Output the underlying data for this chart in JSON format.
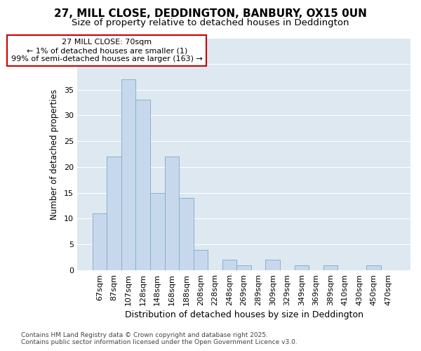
{
  "title_line1": "27, MILL CLOSE, DEDDINGTON, BANBURY, OX15 0UN",
  "title_line2": "Size of property relative to detached houses in Deddington",
  "xlabel": "Distribution of detached houses by size in Deddington",
  "ylabel": "Number of detached properties",
  "bar_labels": [
    "67sqm",
    "87sqm",
    "107sqm",
    "128sqm",
    "148sqm",
    "168sqm",
    "188sqm",
    "208sqm",
    "228sqm",
    "248sqm",
    "269sqm",
    "289sqm",
    "309sqm",
    "329sqm",
    "349sqm",
    "369sqm",
    "389sqm",
    "410sqm",
    "430sqm",
    "450sqm",
    "470sqm"
  ],
  "bar_values": [
    11,
    22,
    37,
    33,
    15,
    22,
    14,
    4,
    0,
    2,
    1,
    0,
    2,
    0,
    1,
    0,
    1,
    0,
    0,
    1,
    0
  ],
  "bar_color": "#c8d8ec",
  "bar_edge_color": "#7aaac8",
  "background_color": "#dde8f0",
  "grid_color": "#ffffff",
  "annotation_text": "27 MILL CLOSE: 70sqm\n← 1% of detached houses are smaller (1)\n99% of semi-detached houses are larger (163) →",
  "annotation_box_facecolor": "#ffffff",
  "annotation_box_edgecolor": "#cc0000",
  "ylim": [
    0,
    45
  ],
  "yticks": [
    0,
    5,
    10,
    15,
    20,
    25,
    30,
    35,
    40,
    45
  ],
  "footnote": "Contains HM Land Registry data © Crown copyright and database right 2025.\nContains public sector information licensed under the Open Government Licence v3.0.",
  "title_fontsize": 11,
  "subtitle_fontsize": 9.5,
  "xlabel_fontsize": 9,
  "ylabel_fontsize": 8.5,
  "tick_fontsize": 8,
  "annotation_fontsize": 8,
  "footnote_fontsize": 6.5,
  "fig_facecolor": "#ffffff"
}
